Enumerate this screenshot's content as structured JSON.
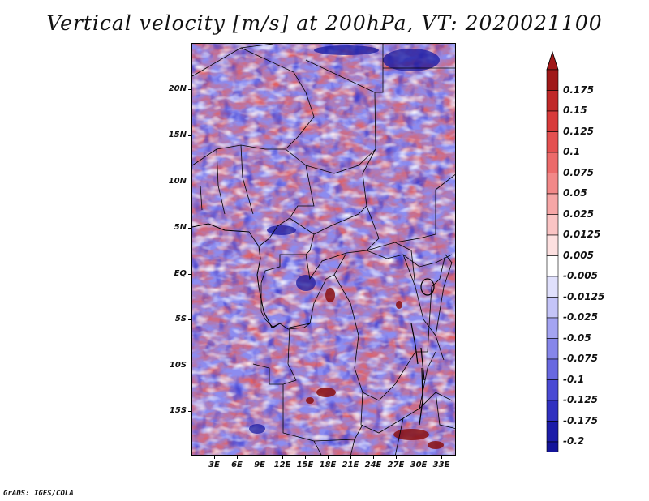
{
  "title": "Vertical velocity [m/s] at 200hPa, VT: 2020021100",
  "lat_labels": [
    "20N",
    "15N",
    "10N",
    "5N",
    "EQ",
    "5S",
    "10S",
    "15S"
  ],
  "lon_labels": [
    "3E",
    "6E",
    "9E",
    "12E",
    "15E",
    "18E",
    "21E",
    "24E",
    "27E",
    "30E",
    "33E"
  ],
  "colorbar": {
    "labels": [
      "0.175",
      "0.15",
      "0.125",
      "0.1",
      "0.075",
      "0.05",
      "0.025",
      "0.0125",
      "0.005",
      "-0.005",
      "-0.0125",
      "-0.025",
      "-0.05",
      "-0.075",
      "-0.1",
      "-0.125",
      "-0.175",
      "-0.2"
    ],
    "colors": [
      "#a01818",
      "#c02828",
      "#d83a3a",
      "#e45050",
      "#ec6a6a",
      "#f28888",
      "#f6a6a6",
      "#fac4c4",
      "#fde0e0",
      "#ffffff",
      "#e0e0fc",
      "#c4c4f8",
      "#a4a4f2",
      "#8686ea",
      "#6868e0",
      "#4a4ad4",
      "#3030c0",
      "#1c1ca8",
      "#14149a"
    ],
    "top_arrow_color": "#a01818",
    "bottom_arrow_color": "#14149a"
  },
  "credit": "GrADS: IGES/COLA"
}
